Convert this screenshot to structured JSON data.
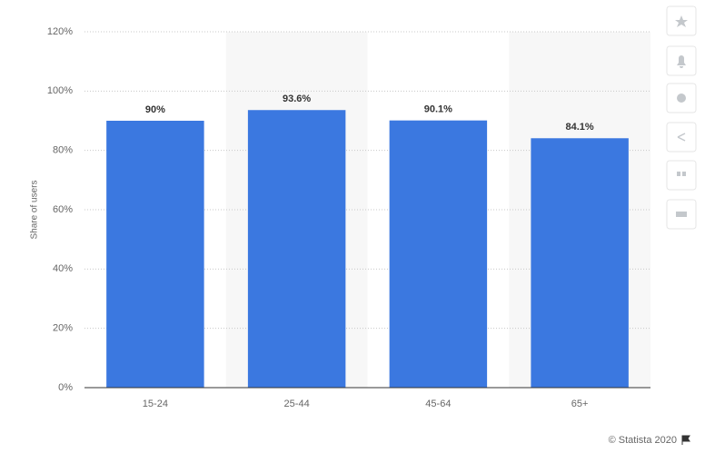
{
  "chart_data": {
    "type": "bar",
    "y_label": "Share of users",
    "categories": [
      "15-24",
      "25-44",
      "45-64",
      "65+"
    ],
    "values": [
      90,
      93.6,
      90.1,
      84.1
    ],
    "value_labels": [
      "90%",
      "93.6%",
      "90.1%",
      "84.1%"
    ],
    "color": "#3b78e0",
    "ylim": [
      0,
      120
    ],
    "yticks": [
      {
        "value": 0,
        "label": "0%"
      },
      {
        "value": 20,
        "label": "20%"
      },
      {
        "value": 40,
        "label": "40%"
      },
      {
        "value": 60,
        "label": "60%"
      },
      {
        "value": 80,
        "label": "80%"
      },
      {
        "value": 100,
        "label": "100%"
      },
      {
        "value": 120,
        "label": "120%"
      }
    ],
    "grid": true,
    "credit": "© Statista 2020"
  }
}
